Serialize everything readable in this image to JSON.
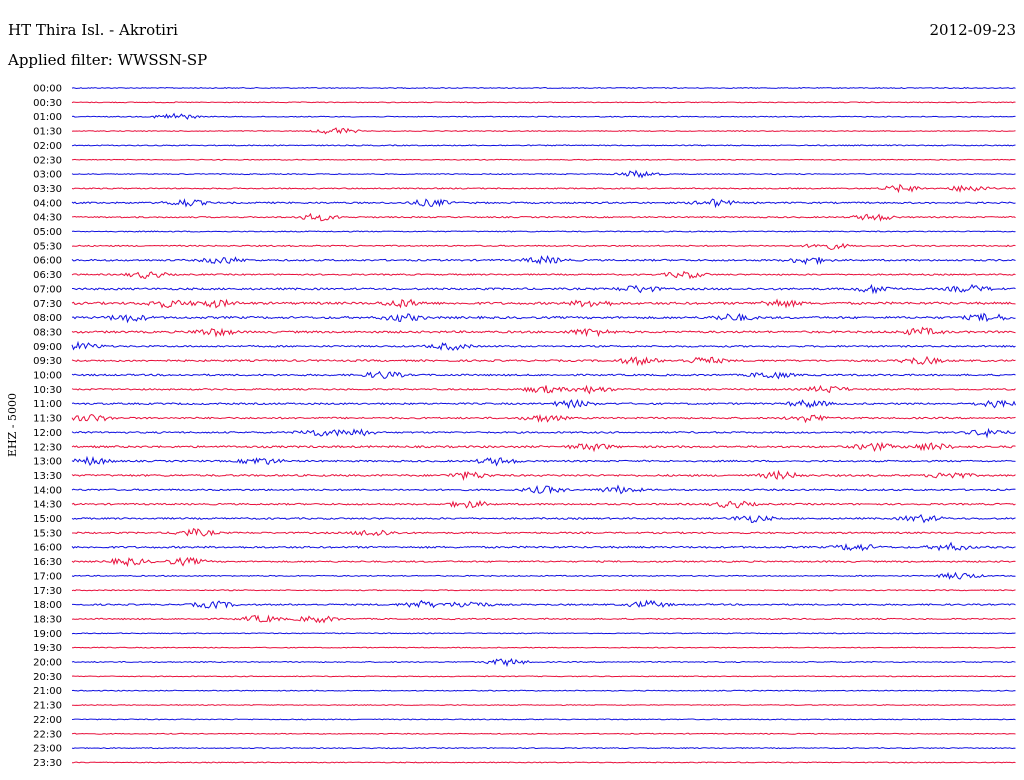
{
  "header": {
    "station": "HT Thira Isl. - Akrotiri",
    "date": "2012-09-23",
    "filter": "Applied filter: WWSSN-SP"
  },
  "chart_data": {
    "type": "line",
    "ylabel": "EHZ - 5000",
    "xlabel": "",
    "title": "",
    "colors": [
      "#1010e0",
      "#e8103c"
    ],
    "rows": [
      {
        "label": "00:00",
        "activity": 0.15,
        "events": []
      },
      {
        "label": "00:30",
        "activity": 0.1,
        "events": []
      },
      {
        "label": "01:00",
        "activity": 0.12,
        "events": [
          0.11
        ]
      },
      {
        "label": "01:30",
        "activity": 0.1,
        "events": [
          0.28
        ]
      },
      {
        "label": "02:00",
        "activity": 0.2,
        "events": []
      },
      {
        "label": "02:30",
        "activity": 0.1,
        "events": []
      },
      {
        "label": "03:00",
        "activity": 0.15,
        "events": [
          0.6
        ]
      },
      {
        "label": "03:30",
        "activity": 0.25,
        "events": [
          0.88,
          0.95
        ]
      },
      {
        "label": "04:00",
        "activity": 0.45,
        "events": [
          0.12,
          0.38,
          0.68
        ]
      },
      {
        "label": "04:30",
        "activity": 0.3,
        "events": [
          0.26,
          0.85
        ]
      },
      {
        "label": "05:00",
        "activity": 0.2,
        "events": []
      },
      {
        "label": "05:30",
        "activity": 0.3,
        "events": [
          0.8
        ]
      },
      {
        "label": "06:00",
        "activity": 0.5,
        "events": [
          0.16,
          0.5,
          0.78
        ]
      },
      {
        "label": "06:30",
        "activity": 0.35,
        "events": [
          0.08,
          0.65
        ]
      },
      {
        "label": "07:00",
        "activity": 0.6,
        "events": [
          0.6,
          0.85,
          0.95
        ]
      },
      {
        "label": "07:30",
        "activity": 0.75,
        "events": [
          0.1,
          0.15,
          0.35,
          0.55,
          0.75
        ]
      },
      {
        "label": "08:00",
        "activity": 0.7,
        "events": [
          0.06,
          0.35,
          0.7,
          0.97
        ]
      },
      {
        "label": "08:30",
        "activity": 0.65,
        "events": [
          0.15,
          0.55,
          0.9
        ]
      },
      {
        "label": "09:00",
        "activity": 0.45,
        "events": [
          0.01,
          0.4
        ]
      },
      {
        "label": "09:30",
        "activity": 0.55,
        "events": [
          0.6,
          0.67,
          0.9
        ]
      },
      {
        "label": "10:00",
        "activity": 0.5,
        "events": [
          0.33,
          0.74
        ]
      },
      {
        "label": "10:30",
        "activity": 0.4,
        "events": [
          0.5,
          0.55,
          0.8
        ]
      },
      {
        "label": "11:00",
        "activity": 0.5,
        "events": [
          0.53,
          0.78,
          0.98
        ]
      },
      {
        "label": "11:30",
        "activity": 0.45,
        "events": [
          0.02,
          0.5,
          0.78
        ]
      },
      {
        "label": "12:00",
        "activity": 0.45,
        "events": [
          0.26,
          0.3,
          0.97
        ]
      },
      {
        "label": "12:30",
        "activity": 0.6,
        "events": [
          0.55,
          0.85,
          0.91
        ]
      },
      {
        "label": "13:00",
        "activity": 0.45,
        "events": [
          0.02,
          0.2,
          0.45
        ]
      },
      {
        "label": "13:30",
        "activity": 0.55,
        "events": [
          0.42,
          0.75,
          0.93
        ]
      },
      {
        "label": "14:00",
        "activity": 0.45,
        "events": [
          0.5,
          0.58
        ]
      },
      {
        "label": "14:30",
        "activity": 0.45,
        "events": [
          0.42,
          0.7
        ]
      },
      {
        "label": "15:00",
        "activity": 0.45,
        "events": [
          0.72,
          0.9
        ]
      },
      {
        "label": "15:30",
        "activity": 0.45,
        "events": [
          0.13,
          0.32
        ]
      },
      {
        "label": "16:00",
        "activity": 0.55,
        "events": [
          0.83,
          0.93
        ]
      },
      {
        "label": "16:30",
        "activity": 0.4,
        "events": [
          0.06,
          0.12
        ]
      },
      {
        "label": "17:00",
        "activity": 0.2,
        "events": [
          0.94
        ]
      },
      {
        "label": "17:30",
        "activity": 0.15,
        "events": []
      },
      {
        "label": "18:00",
        "activity": 0.4,
        "events": [
          0.15,
          0.37,
          0.42,
          0.61
        ]
      },
      {
        "label": "18:30",
        "activity": 0.3,
        "events": [
          0.2,
          0.26
        ]
      },
      {
        "label": "19:00",
        "activity": 0.12,
        "events": []
      },
      {
        "label": "19:30",
        "activity": 0.1,
        "events": []
      },
      {
        "label": "20:00",
        "activity": 0.2,
        "events": [
          0.46
        ]
      },
      {
        "label": "20:30",
        "activity": 0.1,
        "events": []
      },
      {
        "label": "21:00",
        "activity": 0.12,
        "events": []
      },
      {
        "label": "21:30",
        "activity": 0.1,
        "events": []
      },
      {
        "label": "22:00",
        "activity": 0.15,
        "events": []
      },
      {
        "label": "22:30",
        "activity": 0.12,
        "events": []
      },
      {
        "label": "23:00",
        "activity": 0.15,
        "events": []
      },
      {
        "label": "23:30",
        "activity": 0.12,
        "events": []
      }
    ]
  }
}
